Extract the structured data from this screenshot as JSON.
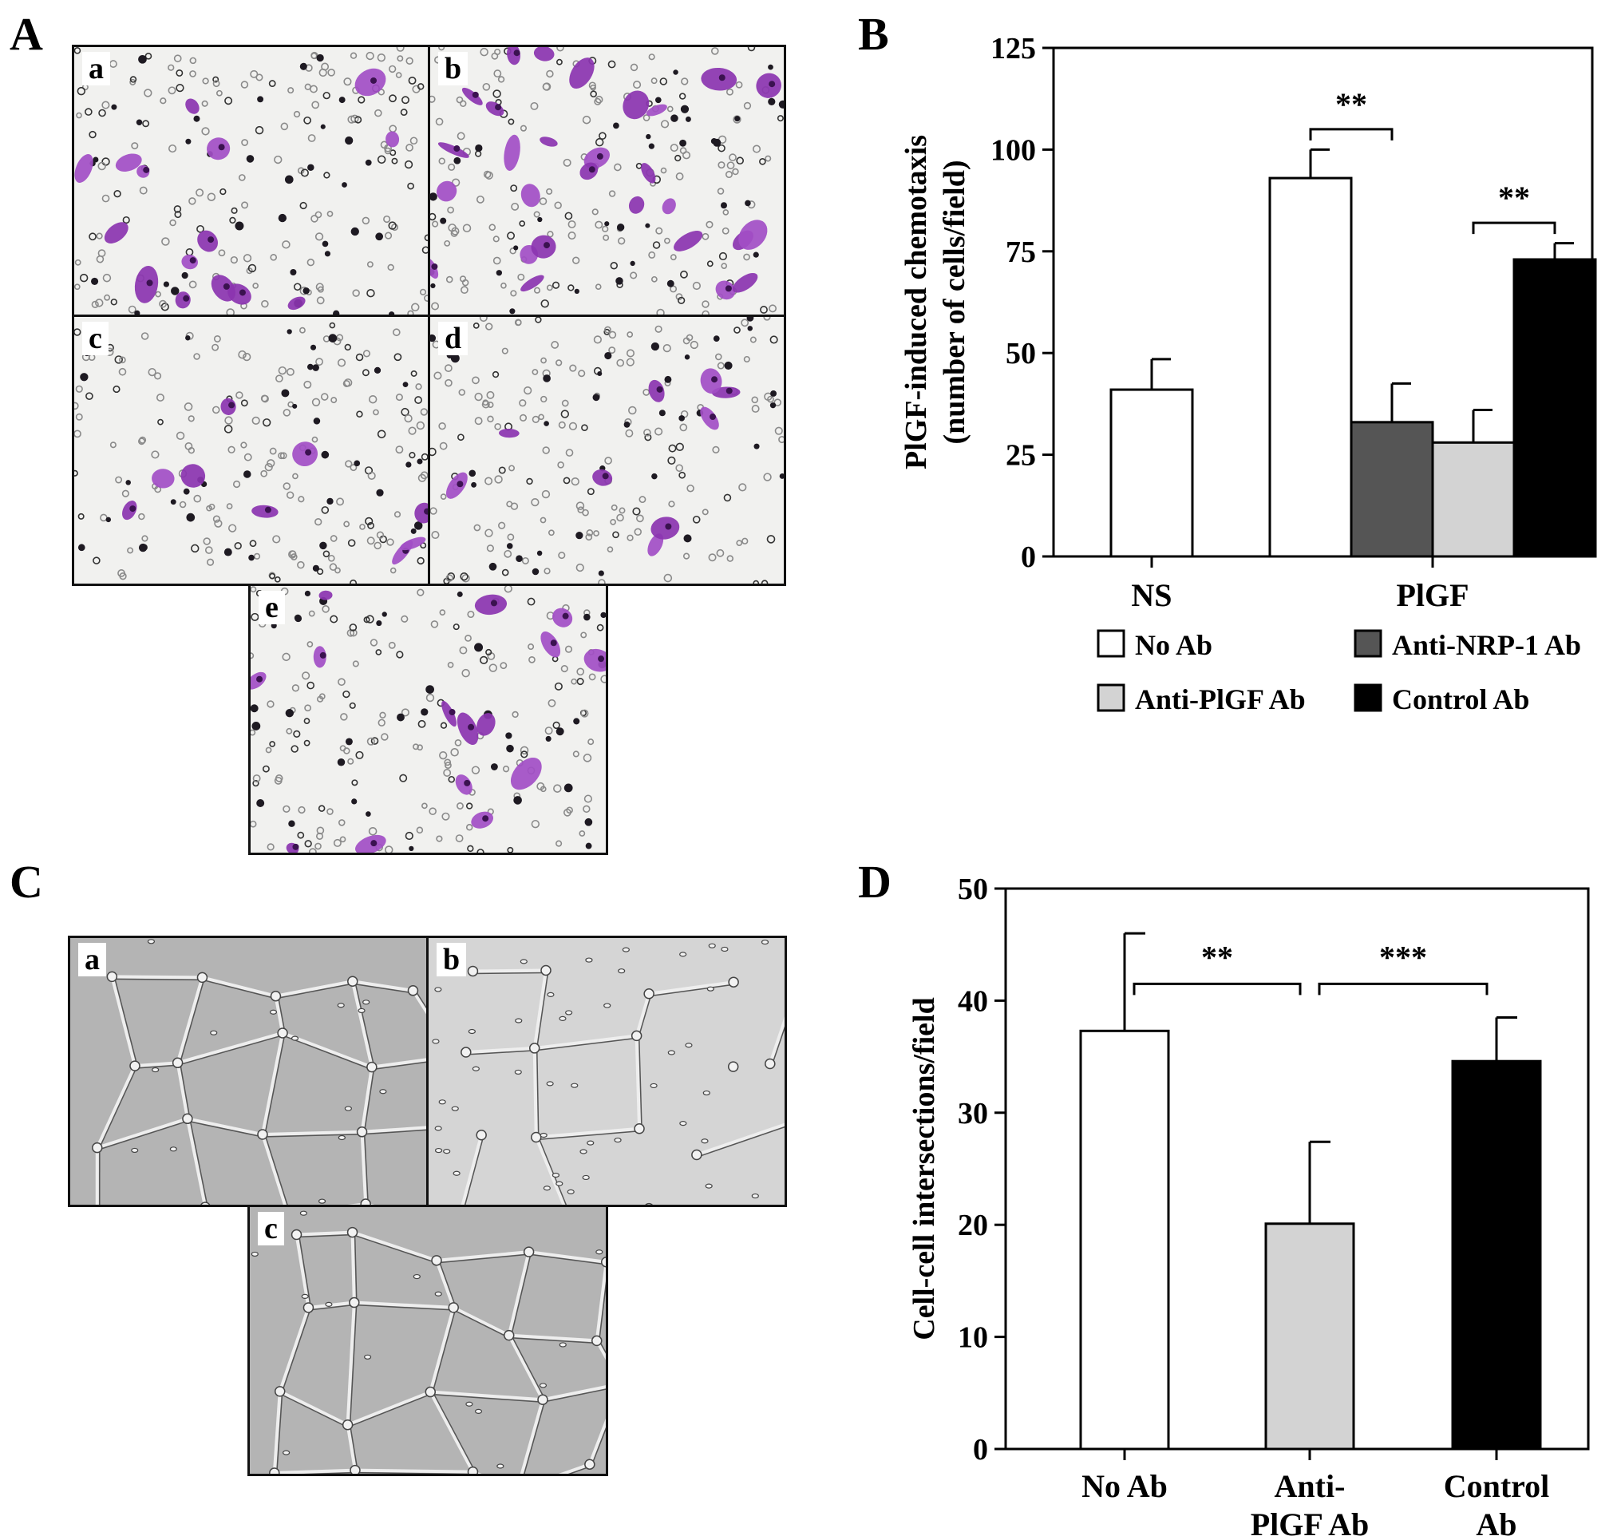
{
  "panels": {
    "A": {
      "label": "A",
      "images": [
        {
          "label": "a",
          "stain": "purple",
          "density": "moderate"
        },
        {
          "label": "b",
          "stain": "purple",
          "density": "high"
        },
        {
          "label": "c",
          "stain": "purple",
          "density": "low"
        },
        {
          "label": "d",
          "stain": "purple",
          "density": "low"
        },
        {
          "label": "e",
          "stain": "purple",
          "density": "moderate"
        }
      ]
    },
    "B": {
      "label": "B"
    },
    "C": {
      "label": "C",
      "images": [
        {
          "label": "a",
          "stain": "grey",
          "network": "intact"
        },
        {
          "label": "b",
          "stain": "grey",
          "network": "disrupted"
        },
        {
          "label": "c",
          "stain": "grey",
          "network": "intact"
        }
      ]
    },
    "D": {
      "label": "D"
    }
  },
  "chart_data": [
    {
      "panel": "B",
      "type": "bar",
      "ylabel_line1": "PlGF-induced chemotaxis",
      "ylabel_line2": "(number of cells/field)",
      "ylim": [
        0,
        125
      ],
      "yticks": [
        "0",
        "25",
        "50",
        "75",
        "100",
        "125"
      ],
      "groups": [
        {
          "label": "NS",
          "bars": [
            {
              "series": "No Ab",
              "value": 41,
              "error": 7.5
            }
          ]
        },
        {
          "label": "PlGF",
          "bars": [
            {
              "series": "No Ab",
              "value": 93,
              "error": 7
            },
            {
              "series": "Anti-NRP-1 Ab",
              "value": 33,
              "error": 9.5
            },
            {
              "series": "Anti-PlGF Ab",
              "value": 28,
              "error": 8
            },
            {
              "series": "Control Ab",
              "value": 73,
              "error": 4
            }
          ]
        }
      ],
      "legend": [
        {
          "name": "No Ab",
          "color": "#ffffff"
        },
        {
          "name": "Anti-NRP-1 Ab",
          "color": "#555555"
        },
        {
          "name": "Anti-PlGF Ab",
          "color": "#d3d3d3"
        },
        {
          "name": "Control Ab",
          "color": "#000000"
        }
      ],
      "legend_position": "bottom",
      "significance": [
        {
          "label": "**",
          "from_bar": 1,
          "to_bar": 2,
          "y": 105
        },
        {
          "label": "**",
          "from_bar": 3,
          "to_bar": 4,
          "y": 82
        }
      ],
      "grid": false
    },
    {
      "panel": "D",
      "type": "bar",
      "ylabel": "Cell-cell intersections/field",
      "ylim": [
        0,
        50
      ],
      "yticks": [
        "0",
        "10",
        "20",
        "30",
        "40",
        "50"
      ],
      "categories": [
        {
          "lines": [
            "No Ab"
          ],
          "value": 37.3,
          "error": 8.7,
          "color": "#ffffff"
        },
        {
          "lines": [
            "Anti-",
            "PlGF Ab"
          ],
          "value": 20.1,
          "error": 7.3,
          "color": "#d3d3d3"
        },
        {
          "lines": [
            "Control",
            "Ab"
          ],
          "value": 34.6,
          "error": 3.9,
          "color": "#000000"
        }
      ],
      "significance": [
        {
          "label": "**",
          "from_bar": 0,
          "to_bar": 1,
          "y": 41.5
        },
        {
          "label": "***",
          "from_bar": 1,
          "to_bar": 2,
          "y": 41.5
        }
      ],
      "grid": false
    }
  ]
}
